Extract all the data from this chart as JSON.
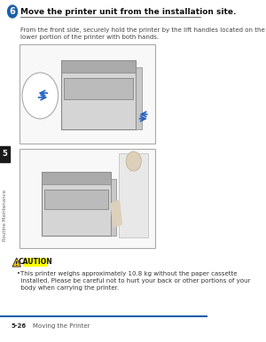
{
  "page_bg": "#ffffff",
  "content_bg": "#ffffff",
  "step_number": "6",
  "step_number_bg": "#1a5fa8",
  "step_text": "Move the printer unit from the installation site.",
  "body_text": "From the front side, securely hold the printer by the lift handles located on the\nlower portion of the printer with both hands.",
  "caution_label": "CAUTION",
  "caution_bg": "#ffff00",
  "caution_bullet": "•This printer weighs approximately 10.8 kg without the paper cassette\n  installed. Please be careful not to hurt your back or other portions of your\n  body when carrying the printer.",
  "footer_line_color": "#1a5fa8",
  "footer_page": "5-26",
  "footer_text": "Moving the Printer",
  "sidebar_number": "5",
  "sidebar_text": "Routine Maintenance",
  "sidebar_bg": "#1a1a1a",
  "sidebar_text_color": "#ffffff",
  "image_border": "#aaaaaa"
}
